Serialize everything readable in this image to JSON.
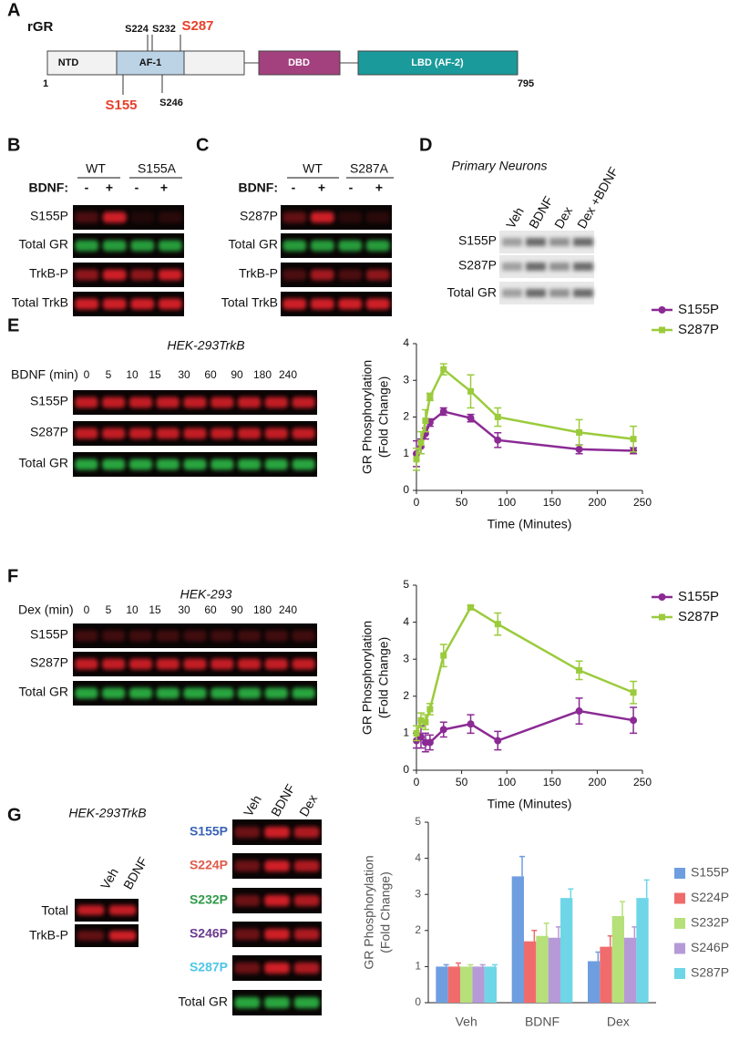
{
  "panel_labels": [
    "A",
    "B",
    "C",
    "D",
    "E",
    "F",
    "G"
  ],
  "panel_a": {
    "protein": "rGR",
    "sites_top": [
      "S224",
      "S232",
      "S287"
    ],
    "sites_bottom": [
      "S155",
      "S246"
    ],
    "domains": [
      "NTD",
      "AF-1",
      "DBD",
      "LBD (AF-2)"
    ],
    "start": 1,
    "end": 795
  },
  "panel_b": {
    "groups": [
      "WT",
      "S155A"
    ],
    "treatment": "BDNF:",
    "lanes": [
      "-",
      "+",
      "-",
      "+"
    ],
    "rows": [
      "S155P",
      "Total GR",
      "TrkB-P",
      "Total TrkB"
    ]
  },
  "panel_c": {
    "groups": [
      "WT",
      "S287A"
    ],
    "treatment": "BDNF:",
    "lanes": [
      "-",
      "+",
      "-",
      "+"
    ],
    "rows": [
      "S287P",
      "Total GR",
      "TrkB-P",
      "Total TrkB"
    ]
  },
  "panel_d": {
    "title": "Primary Neurons",
    "lanes": [
      "Veh",
      "BDNF",
      "Dex",
      "Dex +BDNF"
    ],
    "rows": [
      "S155P",
      "S287P",
      "Total GR"
    ]
  },
  "panel_e": {
    "cell_line": "HEK-293TrkB",
    "treatment": "BDNF (min)",
    "lanes": [
      0,
      5,
      10,
      15,
      30,
      60,
      90,
      180,
      240
    ],
    "rows": [
      "S155P",
      "S287P",
      "Total GR"
    ]
  },
  "panel_f": {
    "cell_line": "HEK-293",
    "treatment": "Dex (min)",
    "lanes": [
      0,
      5,
      10,
      15,
      30,
      60,
      90,
      180,
      240
    ],
    "rows": [
      "S155P",
      "S287P",
      "Total GR"
    ]
  },
  "panel_g": {
    "cell_line": "HEK-293TrkB",
    "left_lanes": [
      "Veh",
      "BDNF"
    ],
    "left_rows": [
      "Total",
      "TrkB-P"
    ],
    "right_lanes": [
      "Veh",
      "BDNF",
      "Dex"
    ],
    "right_rows": [
      "S155P",
      "S224P",
      "S232P",
      "S246P",
      "S287P",
      "Total GR"
    ]
  },
  "chart_data": [
    {
      "type": "line",
      "y_label": [
        "GR Phosphorylation",
        "(Fold Change)"
      ],
      "x_label": "Time (Minutes)",
      "x": [
        0,
        5,
        10,
        15,
        30,
        60,
        90,
        180,
        240
      ],
      "series": [
        {
          "name": "S155P",
          "color": "#8b2a94",
          "marker": "circle",
          "values": [
            1.0,
            1.2,
            1.55,
            1.85,
            2.15,
            1.97,
            1.37,
            1.12,
            1.08
          ],
          "errors": [
            0.35,
            0.2,
            0.15,
            0.1,
            0.1,
            0.1,
            0.2,
            0.12,
            0.08
          ]
        },
        {
          "name": "S287P",
          "color": "#9bcb3c",
          "marker": "square",
          "values": [
            0.85,
            1.3,
            1.9,
            2.55,
            3.3,
            2.7,
            2.0,
            1.58,
            1.4
          ],
          "errors": [
            0.3,
            0.3,
            0.3,
            0.1,
            0.15,
            0.45,
            0.25,
            0.35,
            0.35
          ]
        }
      ],
      "xlim": [
        0,
        250
      ],
      "xticks": [
        0,
        50,
        100,
        150,
        200,
        250
      ],
      "ylim": [
        0,
        4
      ],
      "yticks": [
        0,
        1,
        2,
        3,
        4
      ],
      "legend": "right"
    },
    {
      "type": "line",
      "y_label": [
        "GR Phosphorylation",
        "(Fold Change)"
      ],
      "x_label": "Time (Minutes)",
      "x": [
        0,
        5,
        10,
        15,
        30,
        60,
        90,
        180,
        240
      ],
      "series": [
        {
          "name": "S155P",
          "color": "#8b2a94",
          "marker": "circle",
          "values": [
            0.8,
            0.9,
            0.75,
            0.75,
            1.1,
            1.25,
            0.8,
            1.6,
            1.35
          ],
          "errors": [
            0.2,
            0.3,
            0.25,
            0.2,
            0.2,
            0.25,
            0.25,
            0.35,
            0.35
          ]
        },
        {
          "name": "S287P",
          "color": "#9bcb3c",
          "marker": "square",
          "values": [
            1.0,
            1.35,
            1.3,
            1.65,
            3.1,
            4.4,
            3.95,
            2.7,
            2.1
          ],
          "errors": [
            0.2,
            0.2,
            0.2,
            0.15,
            0.3,
            0.05,
            0.3,
            0.25,
            0.3
          ]
        }
      ],
      "xlim": [
        0,
        250
      ],
      "xticks": [
        0,
        50,
        100,
        150,
        200,
        250
      ],
      "ylim": [
        0,
        5
      ],
      "yticks": [
        0,
        1,
        2,
        3,
        4,
        5
      ],
      "legend": "right"
    },
    {
      "type": "bar",
      "y_label": [
        "GR Phosphorylation",
        "(Fold Change)"
      ],
      "categories": [
        "Veh",
        "BDNF",
        "Dex"
      ],
      "series": [
        {
          "name": "S155P",
          "color": "#6e9ee0",
          "values": [
            1.0,
            3.5,
            1.15
          ],
          "errors": [
            0.05,
            0.55,
            0.25
          ]
        },
        {
          "name": "S224P",
          "color": "#f06c6c",
          "values": [
            1.0,
            1.7,
            1.55
          ],
          "errors": [
            0.1,
            0.3,
            0.3
          ]
        },
        {
          "name": "S232P",
          "color": "#b6e07a",
          "values": [
            1.0,
            1.85,
            2.4
          ],
          "errors": [
            0.05,
            0.35,
            0.4
          ]
        },
        {
          "name": "S246P",
          "color": "#b69ad8",
          "values": [
            1.0,
            1.8,
            1.8
          ],
          "errors": [
            0.05,
            0.3,
            0.3
          ]
        },
        {
          "name": "S287P",
          "color": "#6ed6e6",
          "values": [
            1.0,
            2.9,
            2.9
          ],
          "errors": [
            0.05,
            0.25,
            0.5
          ]
        }
      ],
      "ylim": [
        0,
        5
      ],
      "yticks": [
        0,
        1,
        2,
        3,
        4,
        5
      ],
      "legend": "right"
    }
  ]
}
